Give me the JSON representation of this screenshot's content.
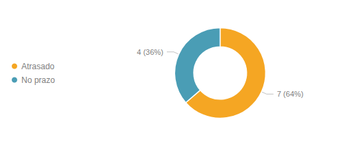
{
  "chart_data": {
    "type": "pie",
    "categories": [
      "Atrasado",
      "No prazo"
    ],
    "values": [
      7,
      4
    ],
    "value_labels": [
      "7 (64%)",
      "4 (36%)"
    ],
    "colors": [
      "#F5A623",
      "#4A9DB5"
    ],
    "data_labels": true,
    "legend": "left"
  }
}
